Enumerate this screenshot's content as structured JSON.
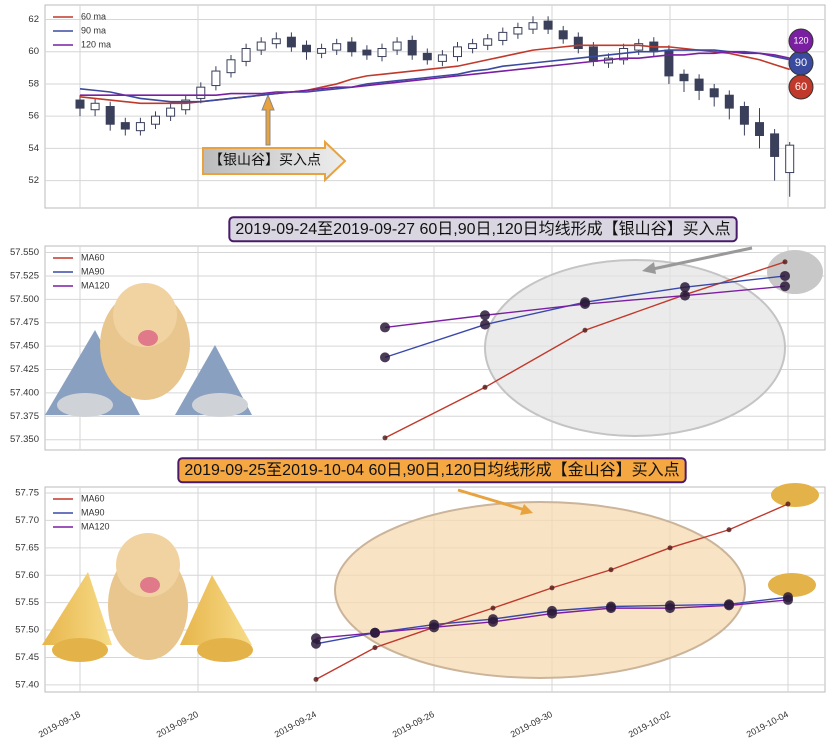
{
  "chart_data": [
    {
      "type": "candlestick",
      "open": [
        57.0,
        56.4,
        56.6,
        55.6,
        55.1,
        55.5,
        56.0,
        56.4,
        57.1,
        57.9,
        58.7,
        59.4,
        60.1,
        60.5,
        60.9,
        60.4,
        59.9,
        60.1,
        60.6,
        60.1,
        59.7,
        60.1,
        60.7,
        59.9,
        59.4,
        59.7,
        60.2,
        60.4,
        60.7,
        61.1,
        61.4,
        61.9,
        61.3,
        60.9,
        60.3,
        59.3,
        59.5,
        60.1,
        60.6,
        60.1,
        58.6,
        58.3,
        57.7,
        57.3,
        56.6,
        55.6,
        54.9,
        52.5
      ],
      "high": [
        57.3,
        57.1,
        56.9,
        55.9,
        55.9,
        56.3,
        56.8,
        57.3,
        58.1,
        59.1,
        59.8,
        60.5,
        60.9,
        61.2,
        61.2,
        60.7,
        60.5,
        60.8,
        60.9,
        60.4,
        60.5,
        60.9,
        61.0,
        60.2,
        60.1,
        60.6,
        60.8,
        61.1,
        61.5,
        61.8,
        62.2,
        62.2,
        61.6,
        61.2,
        60.6,
        59.9,
        60.5,
        60.8,
        60.9,
        60.4,
        58.9,
        58.6,
        58.0,
        57.6,
        56.9,
        56.5,
        55.2,
        54.4
      ],
      "low": [
        56.0,
        56.0,
        55.1,
        54.8,
        54.8,
        55.2,
        55.7,
        56.1,
        56.8,
        57.6,
        58.4,
        59.1,
        59.8,
        60.2,
        60.0,
        59.5,
        59.6,
        59.8,
        59.7,
        59.5,
        59.4,
        59.8,
        59.5,
        59.2,
        59.1,
        59.4,
        59.9,
        60.1,
        60.4,
        60.8,
        61.1,
        61.1,
        60.5,
        59.9,
        59.1,
        59.0,
        59.2,
        59.8,
        59.7,
        58.0,
        57.5,
        57.0,
        56.6,
        55.8,
        54.8,
        54.0,
        52.0,
        51.0
      ],
      "close": [
        56.5,
        56.8,
        55.5,
        55.2,
        55.6,
        56.0,
        56.5,
        57.0,
        57.8,
        58.8,
        59.5,
        60.2,
        60.6,
        60.8,
        60.3,
        60.0,
        60.2,
        60.5,
        60.0,
        59.8,
        60.2,
        60.6,
        59.8,
        59.5,
        59.8,
        60.3,
        60.5,
        60.8,
        61.2,
        61.5,
        61.8,
        61.4,
        60.8,
        60.2,
        59.4,
        59.6,
        60.2,
        60.5,
        60.0,
        58.5,
        58.2,
        57.6,
        57.2,
        56.5,
        55.5,
        54.8,
        53.5,
        54.2
      ],
      "series": [
        {
          "name": "60 ma",
          "color": "#c0392b",
          "end_label": "60",
          "values": [
            57.2,
            57.1,
            57.0,
            56.9,
            56.8,
            56.8,
            56.8,
            56.8,
            56.9,
            57.0,
            57.1,
            57.2,
            57.3,
            57.4,
            57.5,
            57.6,
            57.8,
            58.0,
            58.3,
            58.5,
            58.6,
            58.7,
            58.8,
            58.9,
            59.0,
            59.1,
            59.3,
            59.5,
            59.7,
            59.9,
            60.1,
            60.2,
            60.3,
            60.4,
            60.4,
            60.4,
            60.4,
            60.4,
            60.3,
            60.3,
            60.2,
            60.1,
            60.0,
            59.9,
            59.7,
            59.5,
            59.2,
            58.9
          ]
        },
        {
          "name": "90 ma",
          "color": "#3a4a9e",
          "end_label": "90",
          "values": [
            57.7,
            57.6,
            57.5,
            57.3,
            57.1,
            57.0,
            56.9,
            56.9,
            56.9,
            57.0,
            57.1,
            57.2,
            57.3,
            57.4,
            57.5,
            57.5,
            57.6,
            57.7,
            57.8,
            58.0,
            58.1,
            58.2,
            58.3,
            58.4,
            58.5,
            58.6,
            58.8,
            58.9,
            59.1,
            59.2,
            59.3,
            59.4,
            59.5,
            59.6,
            59.7,
            59.8,
            59.9,
            60.0,
            60.0,
            60.1,
            60.1,
            60.1,
            60.1,
            60.0,
            60.0,
            59.9,
            59.7,
            59.5
          ]
        },
        {
          "name": "120 ma",
          "color": "#7a1fa2",
          "end_label": "120",
          "values": [
            57.3,
            57.3,
            57.3,
            57.3,
            57.3,
            57.3,
            57.3,
            57.3,
            57.3,
            57.3,
            57.4,
            57.4,
            57.4,
            57.5,
            57.5,
            57.6,
            57.7,
            57.8,
            57.8,
            57.9,
            58.0,
            58.1,
            58.2,
            58.3,
            58.4,
            58.5,
            58.6,
            58.7,
            58.8,
            58.9,
            59.0,
            59.1,
            59.2,
            59.3,
            59.4,
            59.5,
            59.6,
            59.6,
            59.7,
            59.8,
            59.8,
            59.9,
            59.9,
            60.0,
            59.9,
            59.9,
            59.8,
            59.6
          ]
        }
      ],
      "ylim": [
        50.3,
        62.9
      ],
      "yticks": [
        52,
        54,
        56,
        58,
        60,
        62
      ],
      "grid": true,
      "annotation": "【银山谷】买入点"
    },
    {
      "type": "line",
      "title": "2019-09-24至2019-09-27 60日,90日,120日均线形成【银山谷】买入点",
      "categories": [
        null,
        null,
        null,
        null,
        null
      ],
      "series": [
        {
          "name": "MA60",
          "color": "#c0392b",
          "values": [
            57.352,
            57.406,
            57.467,
            57.505,
            57.54
          ]
        },
        {
          "name": "MA90",
          "color": "#3949ab",
          "values": [
            57.438,
            57.473,
            57.497,
            57.513,
            57.525
          ]
        },
        {
          "name": "MA120",
          "color": "#7b1fa2",
          "values": [
            57.47,
            57.483,
            57.495,
            57.504,
            57.514
          ]
        }
      ],
      "ylim": [
        57.339,
        57.557
      ],
      "yticks": [
        {
          "value": 57.35,
          "label": "57.350"
        },
        {
          "value": 57.375,
          "label": "57.375"
        },
        {
          "value": 57.4,
          "label": "57.400"
        },
        {
          "value": 57.425,
          "label": "57.425"
        },
        {
          "value": 57.45,
          "label": "57.450"
        },
        {
          "value": 57.475,
          "label": "57.475"
        },
        {
          "value": 57.5,
          "label": "57.500"
        },
        {
          "value": 57.525,
          "label": "57.525"
        },
        {
          "value": 57.55,
          "label": "57.550"
        }
      ],
      "grid": true
    },
    {
      "type": "line",
      "title": "2019-09-25至2019-10-04 60日,90日,120日均线形成【金山谷】买入点",
      "categories": [
        "2019-09-18",
        null,
        "2019-09-20",
        null,
        "2019-09-24",
        null,
        "2019-09-26",
        null,
        "2019-09-30",
        null,
        "2019-10-02",
        null,
        "2019-10-04"
      ],
      "series": [
        {
          "name": "MA60",
          "color": "#c0392b",
          "values": [
            null,
            null,
            null,
            null,
            57.41,
            57.468,
            57.505,
            57.54,
            57.577,
            57.61,
            57.65,
            57.683,
            57.73
          ]
        },
        {
          "name": "MA90",
          "color": "#3949ab",
          "values": [
            null,
            null,
            null,
            null,
            57.475,
            57.495,
            57.51,
            57.52,
            57.535,
            57.543,
            57.545,
            57.547,
            57.56
          ]
        },
        {
          "name": "MA120",
          "color": "#7b1fa2",
          "values": [
            null,
            null,
            null,
            null,
            57.485,
            57.495,
            57.505,
            57.515,
            57.53,
            57.54,
            57.54,
            57.545,
            57.555
          ]
        }
      ],
      "ylim": [
        57.387,
        57.761
      ],
      "yticks": [
        {
          "value": 57.4,
          "label": "57.40"
        },
        {
          "value": 57.45,
          "label": "57.45"
        },
        {
          "value": 57.5,
          "label": "57.50"
        },
        {
          "value": 57.55,
          "label": "57.55"
        },
        {
          "value": 57.6,
          "label": "57.60"
        },
        {
          "value": 57.65,
          "label": "57.65"
        },
        {
          "value": 57.7,
          "label": "57.70"
        },
        {
          "value": 57.75,
          "label": "57.75"
        }
      ],
      "grid": true
    }
  ]
}
